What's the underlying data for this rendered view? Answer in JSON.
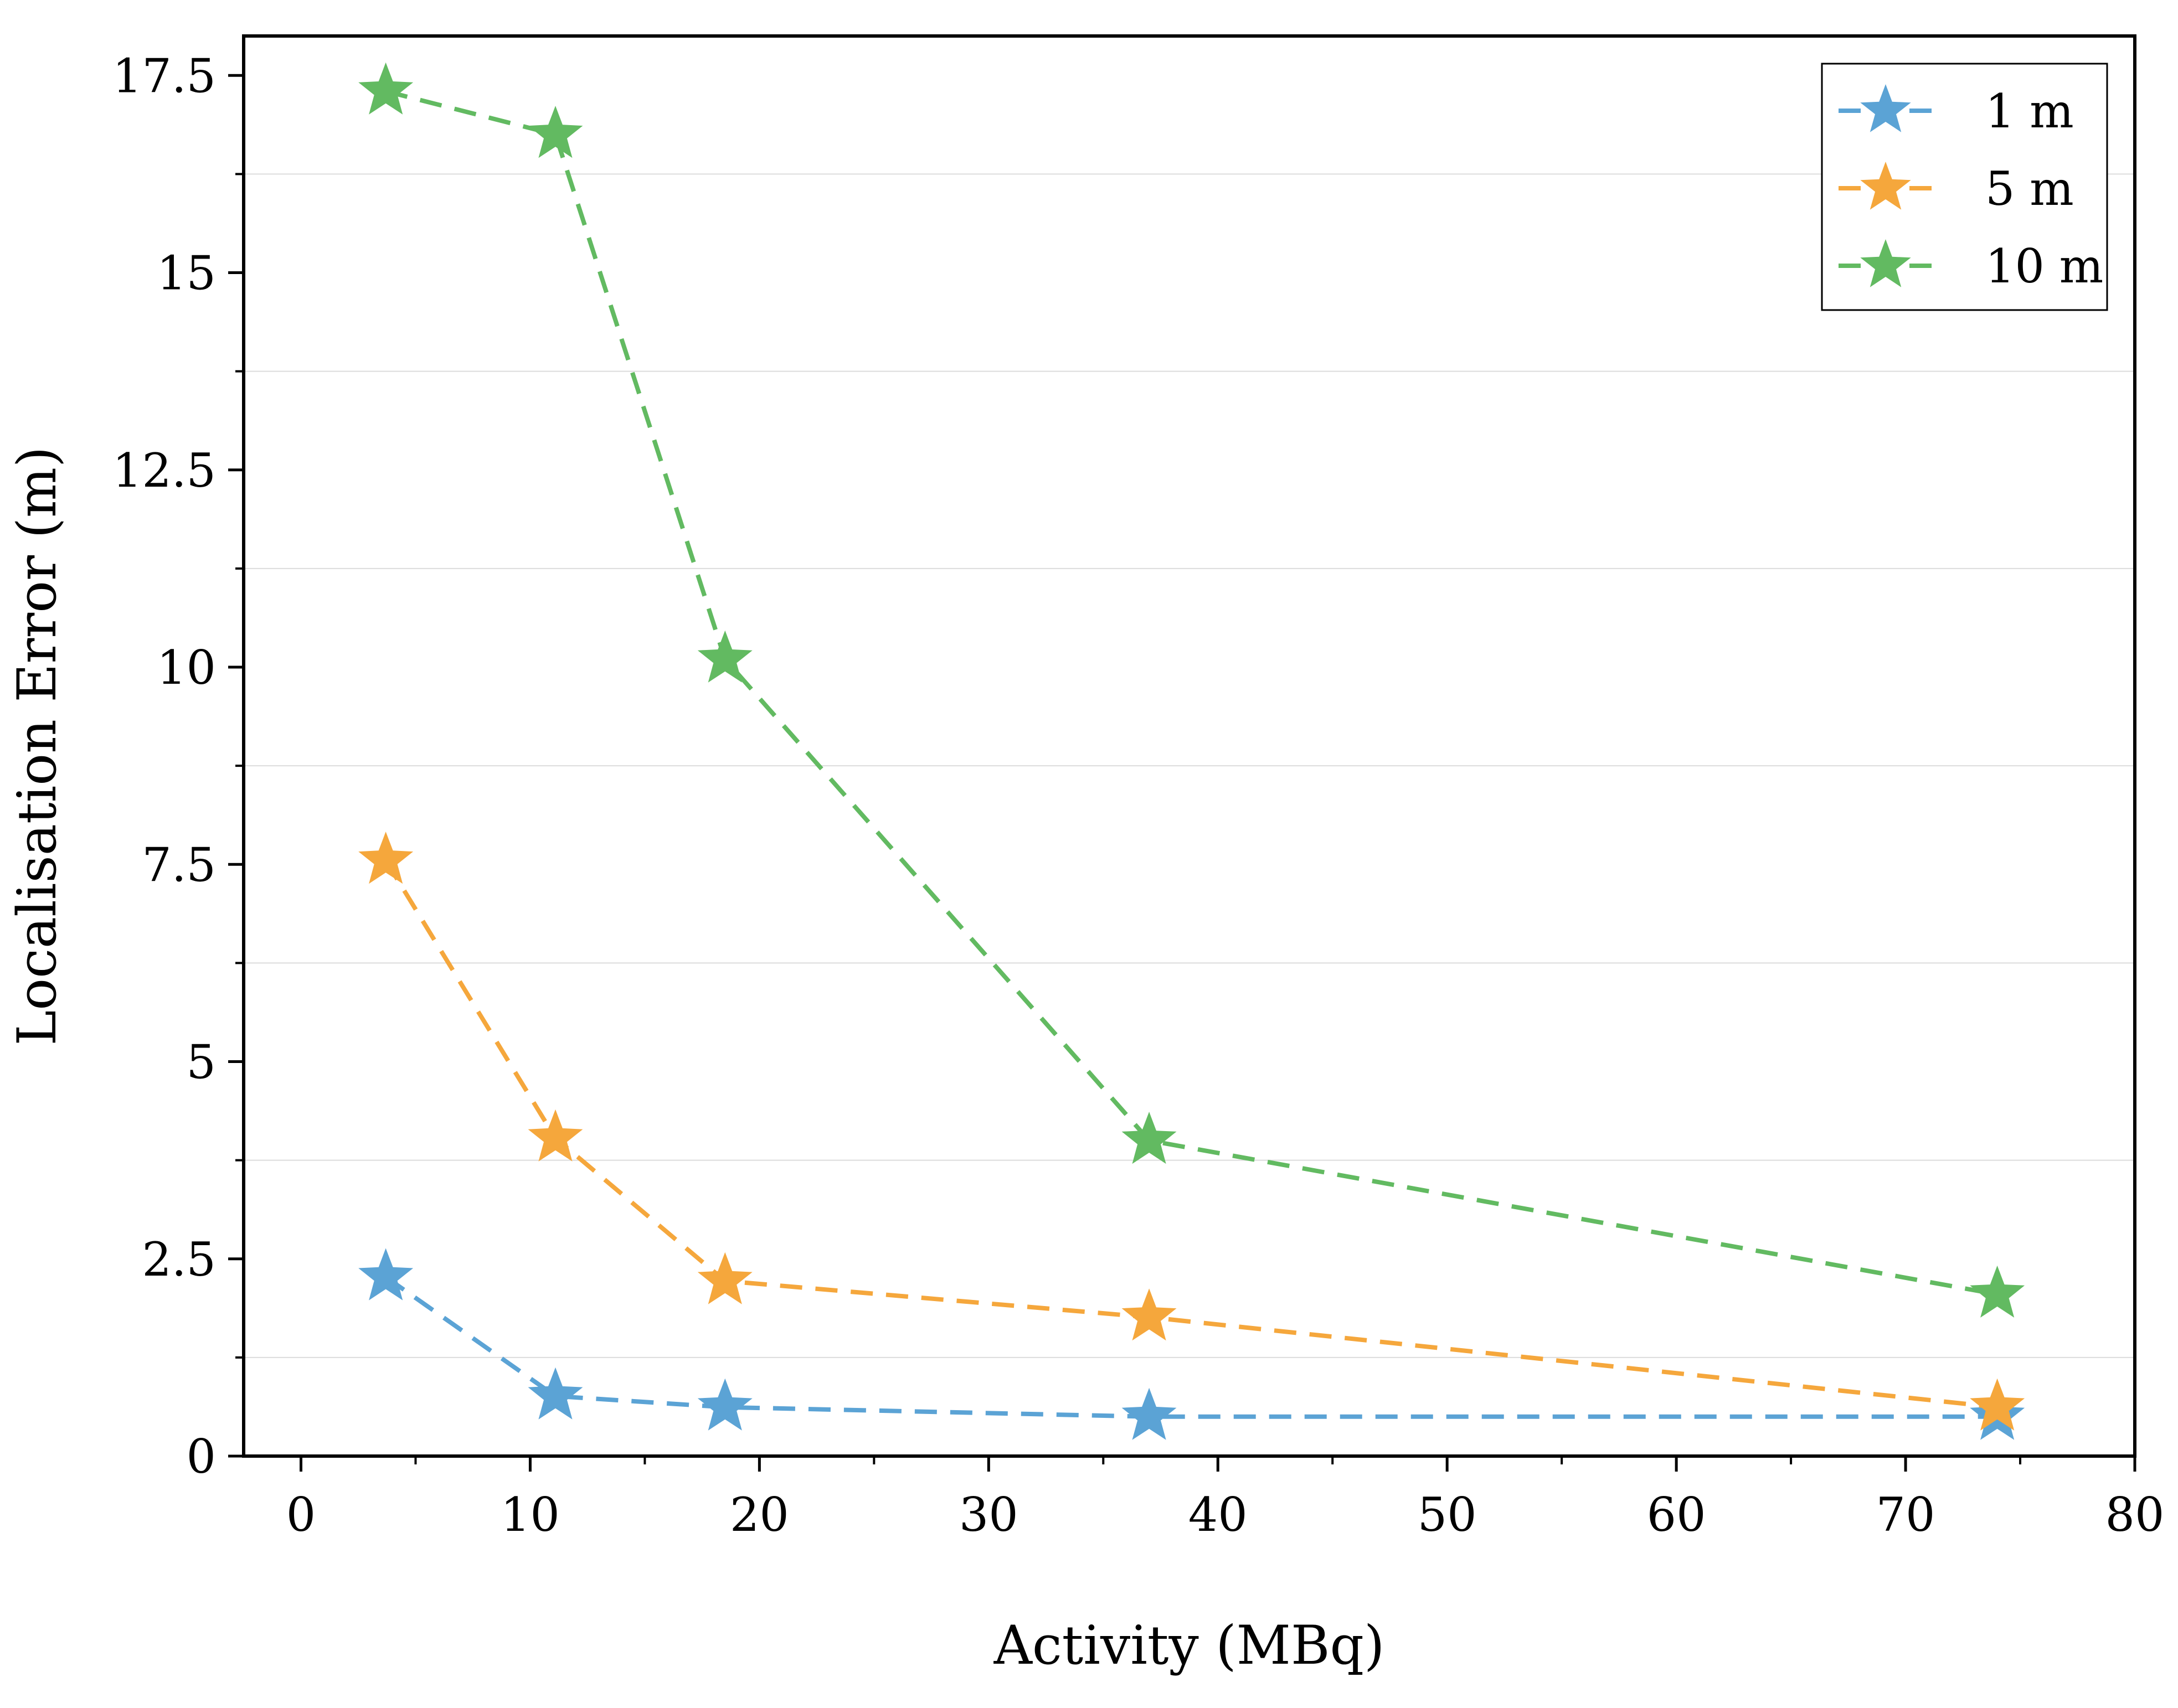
{
  "chart_data": {
    "type": "line",
    "title": "",
    "xlabel": "Activity (MBq)",
    "ylabel": "Localisation Error (m)",
    "xlim": [
      -2.5,
      80
    ],
    "ylim": [
      0,
      18
    ],
    "x_ticks": [
      0,
      10,
      20,
      30,
      40,
      50,
      60,
      70,
      80
    ],
    "x_tick_labels": [
      "0",
      "10",
      "20",
      "30",
      "40",
      "50",
      "60",
      "70",
      "80"
    ],
    "x_minor_ticks": [
      5,
      15,
      25,
      35,
      45,
      55,
      65,
      75
    ],
    "y_ticks": [
      0,
      2.5,
      5,
      7.5,
      10,
      12.5,
      15,
      17.5
    ],
    "y_tick_labels": [
      "0",
      "2.5",
      "5",
      "7.5",
      "10",
      "12.5",
      "15",
      "17.5"
    ],
    "y_minor_ticks": [
      1.25,
      3.75,
      6.25,
      8.75,
      11.25,
      13.75,
      16.25
    ],
    "grid": "horizontal-minor",
    "legend_position": "top-right",
    "marker": "star",
    "line_style": "dashed",
    "x": [
      3.7,
      11.1,
      18.5,
      37,
      74
    ],
    "series": [
      {
        "name": "1 m",
        "color": "#5ba3d5",
        "values": [
          2.27,
          0.76,
          0.62,
          0.5,
          0.5
        ]
      },
      {
        "name": "5 m",
        "color": "#f5a73c",
        "values": [
          7.55,
          4.03,
          2.22,
          1.76,
          0.62
        ]
      },
      {
        "name": "10 m",
        "color": "#62ba61",
        "values": [
          17.3,
          16.75,
          10.1,
          4.0,
          2.05
        ]
      }
    ]
  }
}
